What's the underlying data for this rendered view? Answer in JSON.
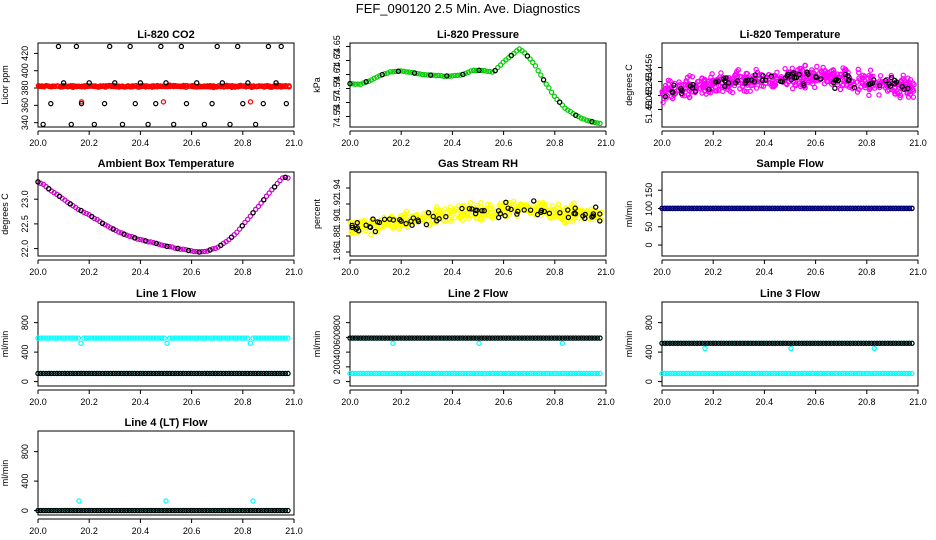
{
  "figure": {
    "title": "FEF_090120  2.5 Min. Ave. Diagnostics"
  },
  "chart_data": [
    {
      "type": "scatter",
      "title": "Li-820 CO2",
      "ylabel": "Licor ppm",
      "xlim": [
        20.0,
        21.0
      ],
      "ylim": [
        335,
        432
      ],
      "xticks": [
        "20.0",
        "20.2",
        "20.4",
        "20.6",
        "20.8",
        "21.0"
      ],
      "yticks": [
        [
          "340",
          "340"
        ],
        [
          "360",
          "360"
        ],
        [
          "380",
          "380"
        ],
        [
          "400",
          "400"
        ],
        [
          "420",
          "420"
        ]
      ],
      "series": [
        {
          "color": "#ff0000",
          "kind": "band",
          "base": 382,
          "amp": 2,
          "noise": 1.5,
          "spikeAt": [
            20.17,
            20.49,
            20.83
          ],
          "spikeVal": 364
        },
        {
          "color": "#000000",
          "kind": "scatter",
          "x": [
            20.02,
            20.05,
            20.08,
            20.1,
            20.13,
            20.15,
            20.17,
            20.2,
            20.22,
            20.26,
            20.28,
            20.3,
            20.33,
            20.36,
            20.38,
            20.4,
            20.43,
            20.46,
            20.48,
            20.5,
            20.53,
            20.56,
            20.58,
            20.62,
            20.65,
            20.68,
            20.7,
            20.72,
            20.75,
            20.78,
            20.8,
            20.82,
            20.85,
            20.88,
            20.9,
            20.93,
            20.95,
            20.97
          ],
          "y": [
            338,
            362,
            428,
            386,
            338,
            428,
            362,
            386,
            338,
            362,
            428,
            386,
            338,
            428,
            362,
            386,
            338,
            362,
            428,
            386,
            338,
            428,
            362,
            386,
            338,
            362,
            428,
            386,
            338,
            428,
            362,
            386,
            338,
            362,
            428,
            386,
            428,
            362
          ]
        }
      ]
    },
    {
      "type": "line",
      "title": "Li-820 Pressure",
      "ylabel": "kPa",
      "xlim": [
        20.0,
        21.0
      ],
      "ylim": [
        74.535,
        74.655
      ],
      "xticks": [
        "20.0",
        "20.2",
        "20.4",
        "20.6",
        "20.8",
        "21.0"
      ],
      "yticks": [
        [
          "74.55",
          "74.55"
        ],
        [
          "74.57",
          "74.57"
        ],
        [
          "74.59",
          "74.59"
        ],
        [
          "74.61",
          "74.61"
        ],
        [
          "74.63",
          "74.63"
        ],
        [
          "74.65",
          "74.65"
        ]
      ],
      "series": [
        {
          "color": "#00cc00",
          "kind": "curve",
          "x": [
            20.0,
            20.04,
            20.08,
            20.12,
            20.16,
            20.2,
            20.24,
            20.28,
            20.32,
            20.36,
            20.4,
            20.44,
            20.48,
            20.52,
            20.56,
            20.6,
            20.64,
            20.66,
            20.68,
            20.72,
            20.76,
            20.8,
            20.84,
            20.88,
            20.92,
            20.96,
            20.98
          ],
          "y": [
            74.597,
            74.596,
            74.602,
            74.609,
            74.614,
            74.615,
            74.613,
            74.61,
            74.609,
            74.608,
            74.608,
            74.61,
            74.616,
            74.616,
            74.613,
            74.628,
            74.64,
            74.647,
            74.642,
            74.625,
            74.6,
            74.578,
            74.562,
            74.552,
            74.545,
            74.541,
            74.54
          ]
        },
        {
          "color": "#000000",
          "kind": "sampled",
          "every": 3
        }
      ]
    },
    {
      "type": "scatter",
      "title": "Li-820 Temperature",
      "ylabel": "degrees C",
      "xlim": [
        20.0,
        21.0
      ],
      "ylim": [
        51.4475,
        51.4595
      ],
      "xticks": [
        "20.0",
        "20.2",
        "20.4",
        "20.6",
        "20.8",
        "21.0"
      ],
      "yticks": [
        [
          "51.450",
          "51.450"
        ],
        [
          "51.452",
          "51.452"
        ],
        [
          "51.454",
          "51.454"
        ],
        [
          "51.456",
          "51.456"
        ]
      ],
      "series": [
        {
          "color": "#ff00ff",
          "kind": "cloud",
          "base": 51.4525,
          "trend": [
            [
              20.0,
              51.4525
            ],
            [
              20.3,
              51.454
            ],
            [
              20.6,
              51.4548
            ],
            [
              21.0,
              51.453
            ]
          ],
          "noise": 0.0022,
          "n": 520
        },
        {
          "color": "#000000",
          "kind": "cloud",
          "base": 51.453,
          "trend": [
            [
              20.0,
              51.4525
            ],
            [
              20.3,
              51.454
            ],
            [
              20.6,
              51.4548
            ],
            [
              21.0,
              51.453
            ]
          ],
          "noise": 0.0016,
          "n": 75
        }
      ]
    },
    {
      "type": "line",
      "title": "Ambient Box Temperature",
      "ylabel": "degrees C",
      "xlim": [
        20.0,
        21.0
      ],
      "ylim": [
        21.85,
        23.55
      ],
      "xticks": [
        "20.0",
        "20.2",
        "20.4",
        "20.6",
        "20.8",
        "21.0"
      ],
      "yticks": [
        [
          "22.0",
          "22.0"
        ],
        [
          "22.5",
          "22.5"
        ],
        [
          "23.0",
          "23.0"
        ]
      ],
      "series": [
        {
          "color": "#cc00cc",
          "kind": "curve",
          "x": [
            20.0,
            20.02,
            20.05,
            20.1,
            20.15,
            20.2,
            20.25,
            20.3,
            20.35,
            20.4,
            20.45,
            20.5,
            20.55,
            20.6,
            20.63,
            20.66,
            20.7,
            20.74,
            20.78,
            20.82,
            20.86,
            20.9,
            20.94,
            20.96,
            20.98
          ],
          "y": [
            23.35,
            23.3,
            23.18,
            23.0,
            22.82,
            22.68,
            22.52,
            22.38,
            22.26,
            22.18,
            22.12,
            22.05,
            22.0,
            21.95,
            21.93,
            21.95,
            22.02,
            22.15,
            22.35,
            22.6,
            22.85,
            23.1,
            23.35,
            23.45,
            23.42
          ]
        },
        {
          "color": "#000000",
          "kind": "sampled",
          "every": 2
        }
      ]
    },
    {
      "type": "scatter",
      "title": "Gas Stream RH",
      "ylabel": "percent",
      "xlim": [
        20.0,
        21.0
      ],
      "ylim": [
        1.855,
        1.96
      ],
      "xticks": [
        "20.0",
        "20.2",
        "20.4",
        "20.6",
        "20.8",
        "21.0"
      ],
      "yticks": [
        [
          "1.86",
          "1.86"
        ],
        [
          "1.88",
          "1.88"
        ],
        [
          "1.90",
          "1.90"
        ],
        [
          "1.92",
          "1.92"
        ],
        [
          "1.94",
          "1.94"
        ]
      ],
      "series": [
        {
          "color": "#ffff00",
          "kind": "cloud",
          "base": 1.905,
          "trend": [
            [
              20.0,
              1.89
            ],
            [
              20.4,
              1.907
            ],
            [
              20.7,
              1.915
            ],
            [
              21.0,
              1.905
            ]
          ],
          "noise": 0.016,
          "n": 440
        },
        {
          "color": "#000000",
          "kind": "cloud",
          "base": 1.905,
          "trend": [
            [
              20.0,
              1.89
            ],
            [
              20.4,
              1.907
            ],
            [
              20.7,
              1.915
            ],
            [
              21.0,
              1.905
            ]
          ],
          "noise": 0.012,
          "n": 70
        }
      ]
    },
    {
      "type": "line",
      "title": "Sample Flow",
      "ylabel": "ml/min",
      "xlim": [
        20.0,
        21.0
      ],
      "ylim": [
        -30,
        200
      ],
      "xticks": [
        "20.0",
        "20.2",
        "20.4",
        "20.6",
        "20.8",
        "21.0"
      ],
      "yticks": [
        [
          "0",
          "0"
        ],
        [
          "50",
          "50"
        ],
        [
          "100",
          "100"
        ],
        [
          "150",
          "150"
        ]
      ],
      "series": [
        {
          "color": "#000000",
          "kind": "flat",
          "y": 100
        },
        {
          "color": "#00008b",
          "kind": "flat",
          "y": 101
        }
      ]
    },
    {
      "type": "line",
      "title": "Line 1 Flow",
      "ylabel": "ml/min",
      "xlim": [
        20.0,
        21.0
      ],
      "ylim": [
        -60,
        1080
      ],
      "xticks": [
        "20.0",
        "20.2",
        "20.4",
        "20.6",
        "20.8",
        "21.0"
      ],
      "yticks": [
        [
          "0",
          "0"
        ],
        [
          "400",
          "400"
        ],
        [
          "800",
          "800"
        ]
      ],
      "series": [
        {
          "color": "#00ffff",
          "kind": "flat",
          "y": 590,
          "dips": [
            20.17,
            20.5,
            20.83
          ],
          "dipVal": 520
        },
        {
          "color": "#00ffff",
          "kind": "flat",
          "y": 110
        },
        {
          "color": "#000000",
          "kind": "flat",
          "y": 110
        }
      ]
    },
    {
      "type": "line",
      "title": "Line 2 Flow",
      "ylabel": "ml/min",
      "xlim": [
        20.0,
        21.0
      ],
      "ylim": [
        -60,
        1080
      ],
      "xticks": [
        "20.0",
        "20.2",
        "20.4",
        "20.6",
        "20.8",
        "21.0"
      ],
      "yticks": [
        [
          "0",
          "0"
        ],
        [
          "200",
          "200"
        ],
        [
          "400",
          "400"
        ],
        [
          "600",
          "600"
        ],
        [
          "800",
          "800"
        ]
      ],
      "series": [
        {
          "color": "#00ffff",
          "kind": "flat",
          "y": 590,
          "dips": [
            20.17,
            20.5,
            20.83
          ],
          "dipVal": 520
        },
        {
          "color": "#000000",
          "kind": "flat",
          "y": 590
        },
        {
          "color": "#00ffff",
          "kind": "flat",
          "y": 110
        }
      ]
    },
    {
      "type": "line",
      "title": "Line 3 Flow",
      "ylabel": "ml/min",
      "xlim": [
        20.0,
        21.0
      ],
      "ylim": [
        -60,
        1080
      ],
      "xticks": [
        "20.0",
        "20.2",
        "20.4",
        "20.6",
        "20.8",
        "21.0"
      ],
      "yticks": [
        [
          "0",
          "0"
        ],
        [
          "400",
          "400"
        ],
        [
          "800",
          "800"
        ]
      ],
      "series": [
        {
          "color": "#00ffff",
          "kind": "flat",
          "y": 520,
          "dips": [
            20.17,
            20.5,
            20.83
          ],
          "dipVal": 450
        },
        {
          "color": "#000000",
          "kind": "flat",
          "y": 520
        },
        {
          "color": "#00ffff",
          "kind": "flat",
          "y": 110
        }
      ]
    },
    {
      "type": "line",
      "title": "Line 4 (LT) Flow",
      "ylabel": "ml/min",
      "xlim": [
        20.0,
        21.0
      ],
      "ylim": [
        -60,
        1080
      ],
      "xticks": [
        "20.0",
        "20.2",
        "20.4",
        "20.6",
        "20.8",
        "21.0"
      ],
      "yticks": [
        [
          "0",
          "0"
        ],
        [
          "400",
          "400"
        ],
        [
          "800",
          "800"
        ]
      ],
      "series": [
        {
          "color": "#00ffff",
          "kind": "flat",
          "y": 2,
          "spikes": [
            20.16,
            20.5,
            20.84
          ],
          "spikeVal": 130
        },
        {
          "color": "#000000",
          "kind": "flat",
          "y": 0
        }
      ]
    }
  ]
}
